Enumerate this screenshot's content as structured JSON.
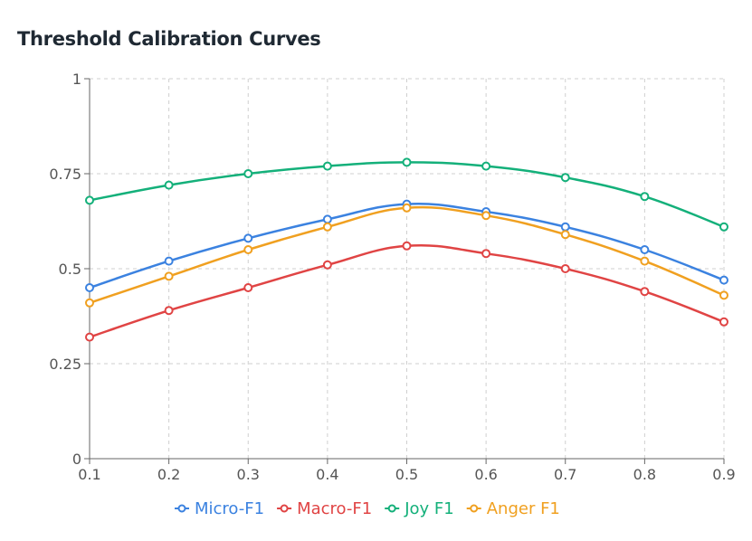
{
  "chart_data": {
    "type": "line",
    "title": "Threshold Calibration Curves",
    "xlabel": "",
    "ylabel": "",
    "x": [
      0.1,
      0.2,
      0.3,
      0.4,
      0.5,
      0.6,
      0.7,
      0.8,
      0.9
    ],
    "xticks": [
      "0.1",
      "0.2",
      "0.3",
      "0.4",
      "0.5",
      "0.6",
      "0.7",
      "0.8",
      "0.9"
    ],
    "yticks": [
      "0",
      "0.25",
      "0.5",
      "0.75",
      "1"
    ],
    "ylim": [
      0,
      1
    ],
    "xlim": [
      0.1,
      0.9
    ],
    "grid": true,
    "legend_position": "bottom-center",
    "series": [
      {
        "name": "Micro-F1",
        "color": "#3b82e0",
        "values": [
          0.45,
          0.52,
          0.58,
          0.63,
          0.67,
          0.65,
          0.61,
          0.55,
          0.47
        ]
      },
      {
        "name": "Macro-F1",
        "color": "#e04444",
        "values": [
          0.32,
          0.39,
          0.45,
          0.51,
          0.56,
          0.54,
          0.5,
          0.44,
          0.36
        ]
      },
      {
        "name": "Joy F1",
        "color": "#14b07a",
        "values": [
          0.68,
          0.72,
          0.75,
          0.77,
          0.78,
          0.77,
          0.74,
          0.69,
          0.61
        ]
      },
      {
        "name": "Anger F1",
        "color": "#f0a020",
        "values": [
          0.41,
          0.48,
          0.55,
          0.61,
          0.66,
          0.64,
          0.59,
          0.52,
          0.43
        ]
      }
    ]
  }
}
